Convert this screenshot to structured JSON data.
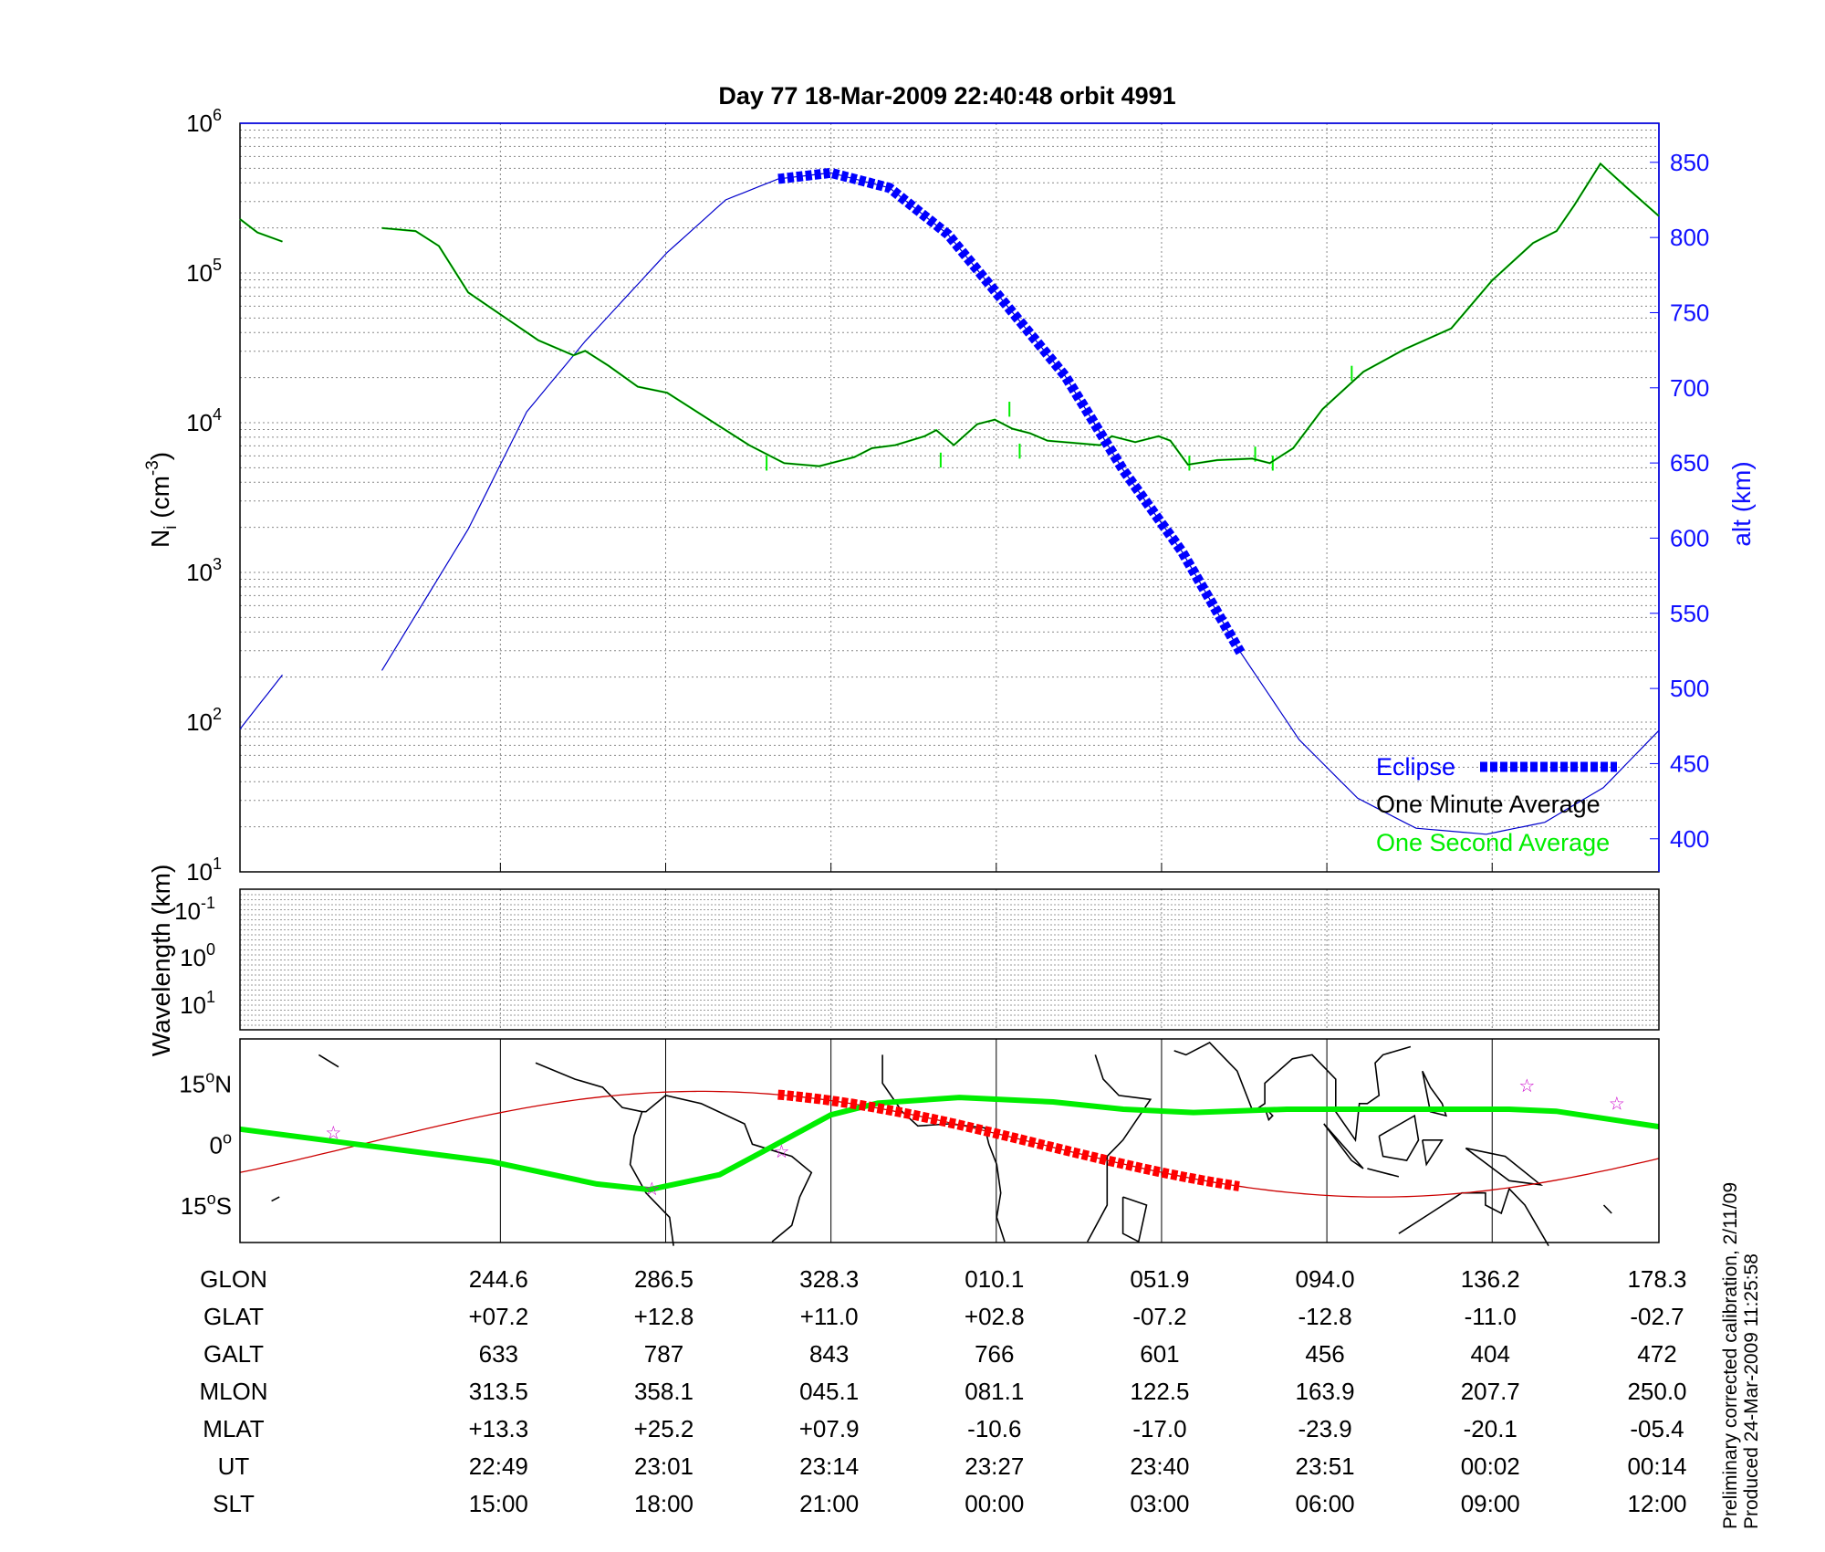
{
  "title": "Day 77  18-Mar-2009 22:40:48   orbit 4991",
  "side_note": [
    "Preliminary corrected calibration, 2/11/09",
    "Produced 24-Mar-2009 11:25:58"
  ],
  "colors": {
    "alt": "#0000cc",
    "eclipse": "#0000ff",
    "minute": "#000000",
    "second": "#00ee00",
    "map_track": "#cc0000",
    "map_eclipse": "#ff0000",
    "star": "#cc00cc"
  },
  "chart_data": [
    {
      "type": "line",
      "title": "Day 77  18-Mar-2009 22:40:48   orbit 4991",
      "xlabel": "",
      "x_unit": "minutes from plot start (approx.)",
      "xlim": [
        0,
        97
      ],
      "x_ticks": [
        17.8,
        29.1,
        40.4,
        51.7,
        63.0,
        74.3,
        85.6,
        97.0
      ],
      "ylabel": "N_i (cm^-3)",
      "y_scale": "log",
      "ylim_exp": [
        1,
        6
      ],
      "y_tick_exps": [
        "1",
        "2",
        "3",
        "4",
        "5",
        "6"
      ],
      "y2label": "alt (km)",
      "y2lim": [
        378,
        876
      ],
      "y2_ticks": [
        "400",
        "450",
        "500",
        "550",
        "600",
        "650",
        "700",
        "750",
        "800",
        "850"
      ],
      "grid": true,
      "legend_position": "bottom-right",
      "legend": {
        "eclipse": "Eclipse",
        "minute": "One Minute Average",
        "second": "One Second Average"
      },
      "series": [
        {
          "name": "One Minute Average",
          "segments": [
            [
              [
                0,
                5.36
              ],
              [
                1.2,
                5.27
              ],
              [
                2.9,
                5.21
              ]
            ],
            [
              [
                9.7,
                5.3
              ],
              [
                12.0,
                5.28
              ],
              [
                13.6,
                5.18
              ],
              [
                15.6,
                4.87
              ],
              [
                18.0,
                4.71
              ],
              [
                20.4,
                4.55
              ],
              [
                22.8,
                4.45
              ],
              [
                23.6,
                4.48
              ],
              [
                25.2,
                4.38
              ],
              [
                27.2,
                4.24
              ],
              [
                29.2,
                4.2
              ],
              [
                31.6,
                4.05
              ],
              [
                34.8,
                3.85
              ],
              [
                37.2,
                3.73
              ],
              [
                39.6,
                3.71
              ],
              [
                42.0,
                3.77
              ],
              [
                43.2,
                3.83
              ],
              [
                44.8,
                3.85
              ],
              [
                46.8,
                3.91
              ],
              [
                47.6,
                3.95
              ],
              [
                48.8,
                3.85
              ],
              [
                50.4,
                3.99
              ],
              [
                51.6,
                4.02
              ],
              [
                52.8,
                3.96
              ],
              [
                54.0,
                3.93
              ],
              [
                55.2,
                3.88
              ],
              [
                58.8,
                3.85
              ],
              [
                59.6,
                3.91
              ],
              [
                61.2,
                3.87
              ],
              [
                62.8,
                3.91
              ],
              [
                63.6,
                3.88
              ],
              [
                64.8,
                3.72
              ],
              [
                66.8,
                3.75
              ],
              [
                69.2,
                3.76
              ],
              [
                70.4,
                3.73
              ],
              [
                72.0,
                3.83
              ],
              [
                74.0,
                4.09
              ],
              [
                76.8,
                4.34
              ],
              [
                79.6,
                4.49
              ],
              [
                82.8,
                4.63
              ],
              [
                85.6,
                4.95
              ],
              [
                88.4,
                5.2
              ],
              [
                90.0,
                5.28
              ],
              [
                91.2,
                5.45
              ],
              [
                93.0,
                5.73
              ],
              [
                94.8,
                5.57
              ],
              [
                97.0,
                5.38
              ]
            ]
          ]
        },
        {
          "name": "One Second Average",
          "spikes": [
            [
              36.0,
              3.68
            ],
            [
              47.9,
              3.8
            ],
            [
              52.6,
              4.14
            ],
            [
              53.3,
              3.86
            ],
            [
              64.9,
              3.68
            ],
            [
              69.4,
              3.84
            ],
            [
              70.6,
              3.68
            ],
            [
              76.0,
              4.38
            ]
          ]
        },
        {
          "name": "alt",
          "axis": "y2",
          "segments": [
            [
              [
                0,
                473
              ],
              [
                2.9,
                509
              ]
            ],
            [
              [
                9.7,
                512
              ],
              [
                15.6,
                606
              ],
              [
                19.6,
                684
              ],
              [
                23.6,
                731
              ],
              [
                29.2,
                790
              ],
              [
                33.2,
                825
              ],
              [
                36.8,
                839
              ],
              [
                40.4,
                843
              ],
              [
                44.4,
                833
              ],
              [
                48.4,
                802
              ],
              [
                52.4,
                755
              ],
              [
                56.4,
                708
              ],
              [
                60.4,
                645
              ],
              [
                64.4,
                591
              ],
              [
                68.4,
                524
              ],
              [
                72.4,
                466
              ],
              [
                76.4,
                427
              ],
              [
                80.4,
                407
              ],
              [
                85.2,
                403
              ],
              [
                89.2,
                411
              ],
              [
                93.2,
                434
              ],
              [
                97.0,
                472
              ]
            ]
          ]
        },
        {
          "name": "Eclipse",
          "t_range": [
            36.8,
            68.4
          ]
        }
      ]
    },
    {
      "type": "line",
      "ylabel": "Wavelength (km)",
      "y_tick_labels": [
        {
          "base": "10",
          "exp": "-1"
        },
        {
          "base": "10",
          "exp": "0"
        },
        {
          "base": "10",
          "exp": "1"
        }
      ],
      "series": []
    },
    {
      "type": "map",
      "lat_labels": [
        {
          "lat": 15,
          "text": "15",
          "suffix": "N"
        },
        {
          "lat": 0,
          "text": "0",
          "suffix": ""
        },
        {
          "lat": -15,
          "text": "15",
          "suffix": "S"
        }
      ],
      "lonlim": [
        -180,
        180
      ],
      "latlim": [
        -24.2,
        25.9
      ],
      "magnetic_equator": [
        [
          -180,
          3.7
        ],
        [
          -157.7,
          0.9
        ],
        [
          -116.2,
          -4.3
        ],
        [
          -89.5,
          -9.8
        ],
        [
          -76.1,
          -11.2
        ],
        [
          -58.3,
          -7.5
        ],
        [
          -45.0,
          -0.6
        ],
        [
          -30.1,
          7.2
        ],
        [
          -18.2,
          10.1
        ],
        [
          2.5,
          11.5
        ],
        [
          26.3,
          10.4
        ],
        [
          44.1,
          8.6
        ],
        [
          61.9,
          7.8
        ],
        [
          85.6,
          8.6
        ],
        [
          115.3,
          8.6
        ],
        [
          142.0,
          8.6
        ],
        [
          153.9,
          8.1
        ],
        [
          180,
          4.3
        ]
      ],
      "track": {
        "max_lat": 13,
        "max_lat_lon": -63,
        "half_period_deg": 172
      },
      "eclipse_lon_range": [
        -43.5,
        73.8
      ],
      "stars": [
        [
          -156.3,
          2.9
        ],
        [
          -75.5,
          -11.0
        ],
        [
          -42.6,
          -1.7
        ],
        [
          146.5,
          14.4
        ],
        [
          169.3,
          10.1
        ]
      ],
      "coastlines": [
        [
          [
            -105,
            20
          ],
          [
            -95,
            16
          ],
          [
            -88,
            14
          ],
          [
            -83,
            9
          ],
          [
            -78,
            8
          ],
          [
            -77,
            8
          ],
          [
            -72,
            12
          ],
          [
            -63,
            10
          ],
          [
            -52,
            5
          ],
          [
            -50,
            0
          ],
          [
            -40,
            -3
          ],
          [
            -35,
            -7
          ],
          [
            -38,
            -13
          ],
          [
            -40,
            -20
          ],
          [
            -45,
            -24
          ]
        ],
        [
          [
            -78,
            8
          ],
          [
            -80,
            2
          ],
          [
            -81,
            -5
          ],
          [
            -77,
            -12
          ],
          [
            -71,
            -18
          ],
          [
            -70,
            -25
          ]
        ],
        [
          [
            -17,
            22
          ],
          [
            -17,
            15
          ],
          [
            -12,
            8
          ],
          [
            -8,
            4.5
          ],
          [
            0,
            5
          ],
          [
            9,
            4
          ],
          [
            10,
            0
          ],
          [
            12,
            -5
          ],
          [
            13,
            -12
          ],
          [
            12,
            -18
          ],
          [
            14,
            -24
          ]
        ],
        [
          [
            37,
            22
          ],
          [
            39,
            16
          ],
          [
            43,
            12
          ],
          [
            51,
            11
          ],
          [
            44,
            1
          ],
          [
            40,
            -3
          ],
          [
            40,
            -10
          ],
          [
            40,
            -15
          ],
          [
            35,
            -24
          ]
        ],
        [
          [
            44,
            -13
          ],
          [
            50,
            -15
          ],
          [
            48,
            -24
          ],
          [
            44,
            -22
          ],
          [
            44,
            -13
          ]
        ],
        [
          [
            57,
            23
          ],
          [
            60,
            22
          ],
          [
            66,
            25
          ],
          [
            68,
            23
          ],
          [
            73,
            18
          ],
          [
            77,
            8
          ],
          [
            80,
            10
          ],
          [
            80,
            15
          ],
          [
            87,
            21
          ],
          [
            92,
            22
          ],
          [
            98,
            16
          ],
          [
            98,
            8
          ],
          [
            103,
            1
          ],
          [
            104,
            10
          ],
          [
            106,
            10
          ],
          [
            109,
            12
          ],
          [
            108,
            20
          ],
          [
            110,
            22
          ],
          [
            117,
            24
          ]
        ],
        [
          [
            80,
            9
          ],
          [
            82,
            7
          ],
          [
            81,
            6
          ],
          [
            80,
            9
          ]
        ],
        [
          [
            95,
            5
          ],
          [
            105,
            -6
          ],
          [
            102,
            -4
          ],
          [
            95,
            5
          ]
        ],
        [
          [
            106,
            -6
          ],
          [
            114,
            -8
          ],
          [
            106,
            -6
          ]
        ],
        [
          [
            109,
            2
          ],
          [
            118,
            7
          ],
          [
            119,
            1
          ],
          [
            116,
            -4
          ],
          [
            110,
            -3
          ],
          [
            109,
            2
          ]
        ],
        [
          [
            120,
            1
          ],
          [
            125,
            1
          ],
          [
            121,
            -5
          ],
          [
            120,
            1
          ]
        ],
        [
          [
            120,
            18
          ],
          [
            122,
            14
          ],
          [
            125,
            10
          ],
          [
            126,
            7
          ],
          [
            122,
            8
          ],
          [
            120,
            18
          ]
        ],
        [
          [
            131,
            -1
          ],
          [
            141,
            -3
          ],
          [
            150,
            -10
          ],
          [
            142,
            -9
          ],
          [
            131,
            -1
          ]
        ],
        [
          [
            114,
            -22
          ],
          [
            122,
            -17
          ],
          [
            130,
            -12
          ],
          [
            136,
            -12
          ],
          [
            136,
            -15
          ],
          [
            140,
            -17
          ],
          [
            142,
            -11
          ],
          [
            146,
            -15
          ],
          [
            149,
            -20
          ],
          [
            152,
            -25
          ]
        ],
        [
          [
            -170,
            -13
          ],
          [
            -172,
            -14
          ]
        ],
        [
          [
            -178,
            -17
          ],
          [
            178,
            -18
          ]
        ],
        [
          [
            166,
            -15
          ],
          [
            168,
            -17
          ]
        ],
        [
          [
            -160,
            22
          ],
          [
            -155,
            19
          ]
        ]
      ]
    }
  ],
  "table": {
    "row_labels": [
      "GLON",
      "GLAT",
      "GALT",
      "MLON",
      "MLAT",
      "UT",
      "SLT"
    ],
    "rows": [
      [
        "244.6",
        "286.5",
        "328.3",
        "010.1",
        "051.9",
        "094.0",
        "136.2",
        "178.3"
      ],
      [
        "+07.2",
        "+12.8",
        "+11.0",
        "+02.8",
        "-07.2",
        "-12.8",
        "-11.0",
        "-02.7"
      ],
      [
        "633",
        "787",
        "843",
        "766",
        "601",
        "456",
        "404",
        "472"
      ],
      [
        "313.5",
        "358.1",
        "045.1",
        "081.1",
        "122.5",
        "163.9",
        "207.7",
        "250.0"
      ],
      [
        "+13.3",
        "+25.2",
        "+07.9",
        "-10.6",
        "-17.0",
        "-23.9",
        "-20.1",
        "-05.4"
      ],
      [
        "22:49",
        "23:01",
        "23:14",
        "23:27",
        "23:40",
        "23:51",
        "00:02",
        "00:14"
      ],
      [
        "15:00",
        "18:00",
        "21:00",
        "00:00",
        "03:00",
        "06:00",
        "09:00",
        "12:00"
      ]
    ]
  }
}
